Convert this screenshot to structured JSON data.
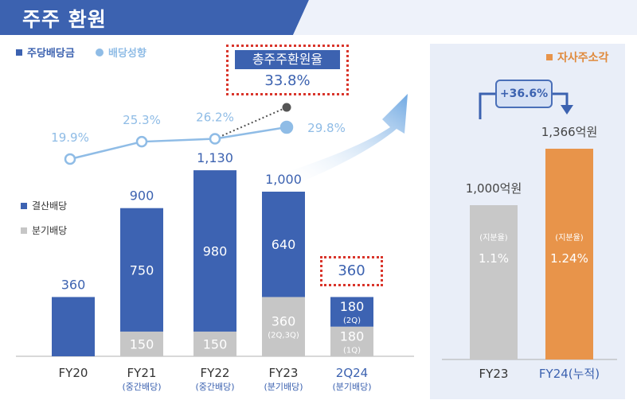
{
  "header": {
    "title": "주주 환원"
  },
  "legend": {
    "dividend": "주당배당금",
    "payout": "배당성향"
  },
  "callout": {
    "title": "총주주환원율",
    "value": "33.8%"
  },
  "bar_legend": {
    "final": "결산배당",
    "quarterly": "분기배당"
  },
  "colors": {
    "header": "#3c62b0",
    "bar_blue": "#3d63b2",
    "bar_gray": "#c6c6c6",
    "line": "#8fbce6",
    "orange": "#e8944a",
    "gray_bar": "#c8c8c8"
  },
  "chart_data": [
    {
      "type": "bar",
      "categories": [
        "FY20",
        "FY21",
        "FY22",
        "FY23",
        "2Q24"
      ],
      "subcategories": [
        "",
        "(중간배당)",
        "(중간배당)",
        "(분기배당)",
        "(분기배당)"
      ],
      "series": [
        {
          "name": "결산배당",
          "values": [
            360,
            750,
            980,
            640,
            180
          ],
          "labels": [
            "360",
            "750",
            "980",
            "640",
            "180"
          ],
          "sublabels": [
            "",
            "",
            "",
            "",
            "(2Q)"
          ]
        },
        {
          "name": "분기배당",
          "values": [
            0,
            150,
            150,
            360,
            180
          ],
          "labels": [
            "",
            "150",
            "150",
            "360",
            "180"
          ],
          "sublabels": [
            "",
            "",
            "",
            "(2Q,3Q)",
            "(1Q)"
          ]
        }
      ],
      "totals": [
        "360",
        "900",
        "1,130",
        "1,000",
        "360"
      ],
      "ylim": [
        0,
        1200
      ]
    },
    {
      "type": "line",
      "name": "배당성향",
      "categories": [
        "FY20",
        "FY21",
        "FY22",
        "FY23"
      ],
      "values": [
        19.9,
        25.3,
        26.2,
        29.8
      ],
      "labels": [
        "19.9%",
        "25.3%",
        "26.2%",
        "29.8%"
      ],
      "ylim": [
        0,
        35
      ]
    },
    {
      "type": "bar",
      "title": "자사주소각",
      "categories": [
        "FY23",
        "FY24"
      ],
      "category_labels": [
        "FY23",
        "FY24(누적)"
      ],
      "values": [
        1000,
        1366
      ],
      "value_labels": [
        "1,000억원",
        "1,366억원"
      ],
      "ratio_caption": "(지분율)",
      "ratios": [
        "1.1%",
        "1.24%"
      ],
      "growth": "+36.6%",
      "ylim": [
        0,
        1400
      ]
    }
  ]
}
